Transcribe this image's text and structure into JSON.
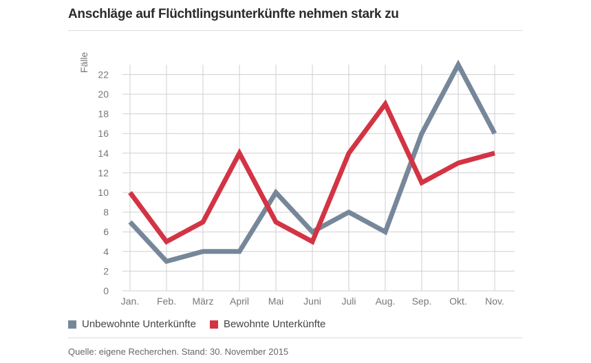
{
  "chart_data": {
    "type": "line",
    "title": "Anschläge auf Flüchtlingsunterkünfte nehmen stark zu",
    "ylabel": "Fälle",
    "xlabel": "",
    "categories": [
      "Jan.",
      "Feb.",
      "März",
      "April",
      "Mai",
      "Juni",
      "Juli",
      "Aug.",
      "Sep.",
      "Okt.",
      "Nov."
    ],
    "ylim": [
      0,
      23
    ],
    "yticks": [
      0,
      2,
      4,
      6,
      8,
      10,
      12,
      14,
      16,
      18,
      20,
      22
    ],
    "grid": true,
    "legend_position": "bottom-left",
    "series": [
      {
        "name": "Unbewohnte Unterkünfte",
        "color": "#77879a",
        "values": [
          7,
          3,
          4,
          4,
          10,
          6,
          8,
          6,
          16,
          23,
          16
        ]
      },
      {
        "name": "Bewohnte Unterkünfte",
        "color": "#d33444",
        "values": [
          10,
          5,
          7,
          14,
          7,
          5,
          14,
          19,
          11,
          13,
          14
        ]
      }
    ],
    "source": "Quelle: eigene Recherchen. Stand: 30. November 2015"
  }
}
